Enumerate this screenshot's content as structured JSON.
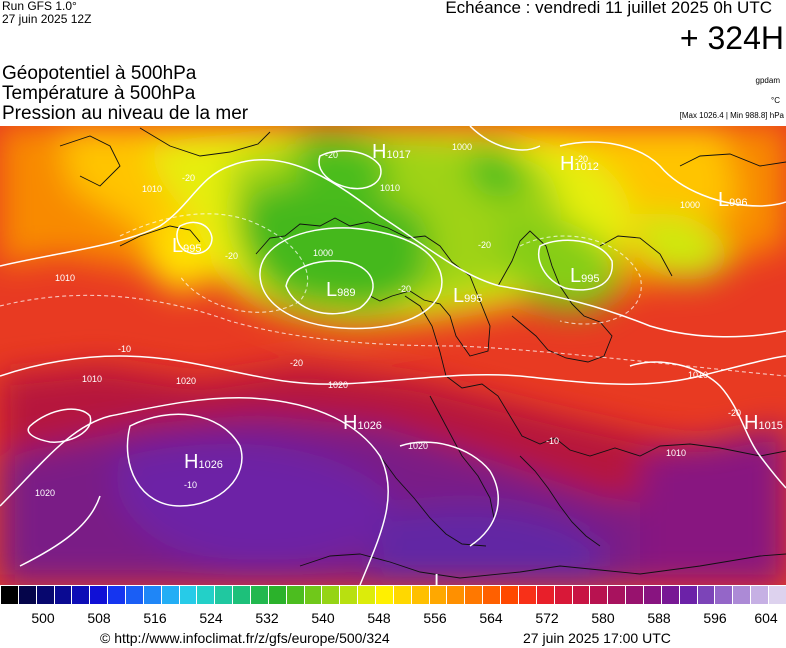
{
  "header": {
    "run_model": "Run GFS 1.0°",
    "run_date": "27 juin 2025 12Z",
    "echeance": "Echéance : vendredi 11 juillet 2025 0h UTC",
    "horizon": "+ 324H"
  },
  "layers": [
    "Géopotentiel à 500hPa",
    "Température à 500hPa",
    "Pression au niveau de la mer"
  ],
  "units": {
    "geopotential": "gpdam",
    "temperature": "°C"
  },
  "pressure_extremes": "[Max 1026.4 | Min 988.8] hPa",
  "map_labels": {
    "highs": [
      {
        "letter": "H",
        "value": "1017"
      },
      {
        "letter": "H",
        "value": "1012"
      },
      {
        "letter": "H",
        "value": "1026"
      },
      {
        "letter": "H",
        "value": "1026"
      },
      {
        "letter": "H",
        "value": "1015"
      }
    ],
    "lows": [
      {
        "letter": "L",
        "value": "989"
      },
      {
        "letter": "L",
        "value": "995"
      },
      {
        "letter": "L",
        "value": "995"
      },
      {
        "letter": "L",
        "value": "996"
      },
      {
        "letter": "L",
        "value": "995"
      },
      {
        "letter": "L",
        "value": ""
      }
    ],
    "isobars": [
      "1010",
      "1020",
      "1020",
      "1020",
      "1010",
      "1000",
      "1010",
      "1000",
      "1010",
      "1010",
      "1020",
      "1010",
      "1000"
    ],
    "isotherms": [
      "-20",
      "-20",
      "-20",
      "-20",
      "-20",
      "-20",
      "-20",
      "-10",
      "-10",
      "-10",
      "-20"
    ]
  },
  "colorbar": {
    "colors": [
      "#000000",
      "#05054a",
      "#07076e",
      "#0a0a92",
      "#0d0db6",
      "#1010d6",
      "#1535f0",
      "#1a5ef5",
      "#1f86f7",
      "#23aef5",
      "#27cbe8",
      "#23d0c8",
      "#20c8a0",
      "#1dc07a",
      "#22b84e",
      "#2bb22b",
      "#4cbd1f",
      "#70c81a",
      "#95d415",
      "#b8e010",
      "#dcec0a",
      "#fff000",
      "#ffd800",
      "#ffc000",
      "#ffa800",
      "#ff9000",
      "#ff7800",
      "#ff6000",
      "#ff4800",
      "#f83018",
      "#e81f2a",
      "#d81838",
      "#c81444",
      "#b81250",
      "#a8125e",
      "#98126e",
      "#881480",
      "#781894",
      "#6c22a8",
      "#7c44b8",
      "#9466c8",
      "#ac8ad6",
      "#c6b0e4",
      "#ddd2ee"
    ],
    "ticks": [
      "500",
      "508",
      "516",
      "524",
      "532",
      "540",
      "548",
      "556",
      "564",
      "572",
      "580",
      "588",
      "596",
      "604"
    ]
  },
  "footer": {
    "url": "© http://www.infoclimat.fr/z/gfs/europe/500/324",
    "generated": "27 juin 2025 17:00 UTC"
  }
}
